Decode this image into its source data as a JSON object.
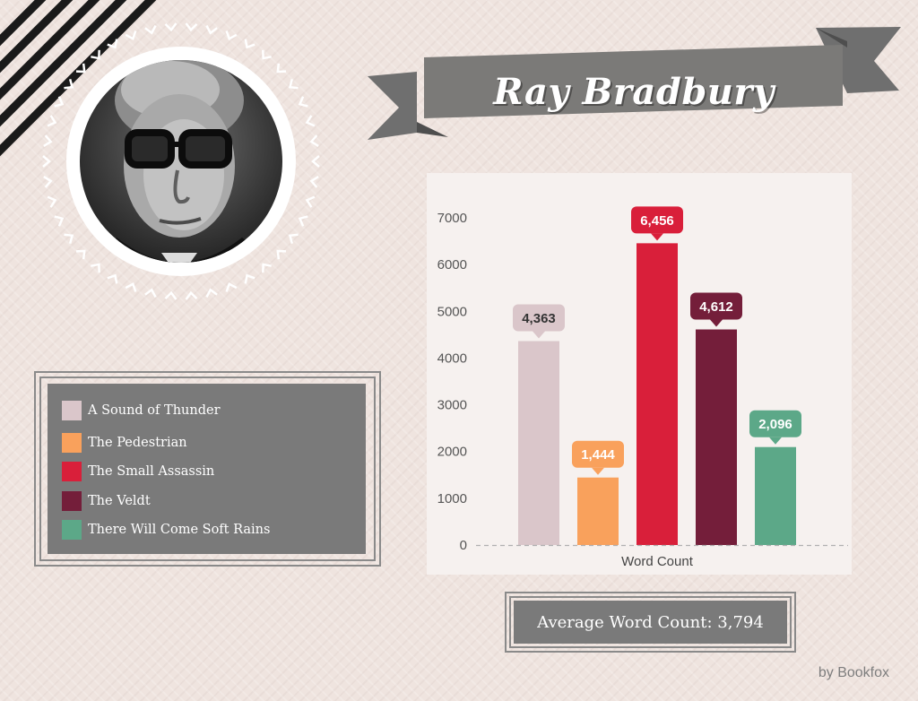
{
  "author": {
    "name": "Ray Bradbury"
  },
  "portrait_icon": "author-portrait-photo",
  "legend": [
    {
      "label": "A Sound of Thunder",
      "color": "#dac6ca"
    },
    {
      "label": "The Pedestrian",
      "color": "#f9a15c"
    },
    {
      "label": "The Small Assassin",
      "color": "#d91f3a"
    },
    {
      "label": "The Veldt",
      "color": "#741e3a"
    },
    {
      "label": "There Will Come Soft Rains",
      "color": "#5ca888"
    }
  ],
  "summary": {
    "average_text": "Average Word Count: 3,794"
  },
  "credit": "by Bookfox",
  "chart_data": {
    "type": "bar",
    "title": "",
    "xlabel": "Word Count",
    "ylabel": "",
    "ylim": [
      0,
      7000
    ],
    "yticks": [
      0,
      1000,
      2000,
      3000,
      4000,
      5000,
      6000,
      7000
    ],
    "grid": false,
    "legend_position": "left",
    "series": [
      {
        "name": "A Sound of Thunder",
        "value": 4363,
        "label": "4,363",
        "color": "#dac6ca",
        "label_text_color": "#333333"
      },
      {
        "name": "The Pedestrian",
        "value": 1444,
        "label": "1,444",
        "color": "#f9a15c",
        "label_text_color": "#ffffff"
      },
      {
        "name": "The Small Assassin",
        "value": 6456,
        "label": "6,456",
        "color": "#d91f3a",
        "label_text_color": "#ffffff"
      },
      {
        "name": "The Veldt",
        "value": 4612,
        "label": "4,612",
        "color": "#741e3a",
        "label_text_color": "#ffffff"
      },
      {
        "name": "There Will Come Soft Rains",
        "value": 2096,
        "label": "2,096",
        "color": "#5ca888",
        "label_text_color": "#ffffff"
      }
    ]
  }
}
